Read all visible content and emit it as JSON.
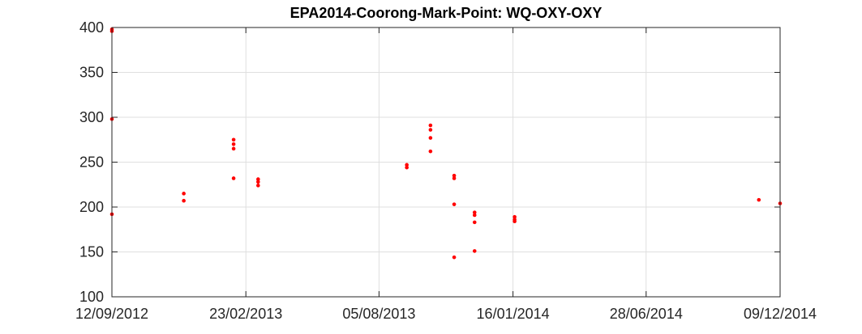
{
  "chart_data": {
    "type": "scatter",
    "title": "EPA2014-Coorong-Mark-Point: WQ-OXY-OXY",
    "xlabel": "",
    "ylabel": "",
    "x_axis_type": "date",
    "xlim": [
      "2012-09-12",
      "2014-12-09"
    ],
    "ylim": [
      100,
      400
    ],
    "grid": true,
    "legend": "none",
    "marker_color": "#ff0000",
    "x_ticks": [
      {
        "value": "2012-09-12",
        "label": "12/09/2012"
      },
      {
        "value": "2013-02-23",
        "label": "23/02/2013"
      },
      {
        "value": "2013-08-05",
        "label": "05/08/2013"
      },
      {
        "value": "2014-01-16",
        "label": "16/01/2014"
      },
      {
        "value": "2014-06-28",
        "label": "28/06/2014"
      },
      {
        "value": "2014-12-09",
        "label": "09/12/2014"
      }
    ],
    "y_ticks": [
      100,
      150,
      200,
      250,
      300,
      350,
      400
    ],
    "points": [
      {
        "x": "2012-09-12",
        "y": 398
      },
      {
        "x": "2012-09-12",
        "y": 396
      },
      {
        "x": "2012-09-12",
        "y": 298
      },
      {
        "x": "2012-09-12",
        "y": 192
      },
      {
        "x": "2012-12-09",
        "y": 215
      },
      {
        "x": "2012-12-09",
        "y": 207
      },
      {
        "x": "2013-02-08",
        "y": 275
      },
      {
        "x": "2013-02-08",
        "y": 270
      },
      {
        "x": "2013-02-08",
        "y": 265
      },
      {
        "x": "2013-02-08",
        "y": 232
      },
      {
        "x": "2013-03-10",
        "y": 231
      },
      {
        "x": "2013-03-10",
        "y": 228
      },
      {
        "x": "2013-03-10",
        "y": 224
      },
      {
        "x": "2013-09-08",
        "y": 247
      },
      {
        "x": "2013-09-08",
        "y": 244
      },
      {
        "x": "2013-10-07",
        "y": 291
      },
      {
        "x": "2013-10-07",
        "y": 286
      },
      {
        "x": "2013-10-07",
        "y": 277
      },
      {
        "x": "2013-10-07",
        "y": 262
      },
      {
        "x": "2013-11-05",
        "y": 235
      },
      {
        "x": "2013-11-05",
        "y": 232
      },
      {
        "x": "2013-11-05",
        "y": 203
      },
      {
        "x": "2013-11-05",
        "y": 144
      },
      {
        "x": "2013-11-30",
        "y": 194
      },
      {
        "x": "2013-11-30",
        "y": 191
      },
      {
        "x": "2013-11-30",
        "y": 183
      },
      {
        "x": "2013-11-30",
        "y": 151
      },
      {
        "x": "2014-01-18",
        "y": 189
      },
      {
        "x": "2014-01-18",
        "y": 186
      },
      {
        "x": "2014-01-18",
        "y": 184
      },
      {
        "x": "2014-11-13",
        "y": 208
      },
      {
        "x": "2014-12-09",
        "y": 204
      }
    ]
  }
}
